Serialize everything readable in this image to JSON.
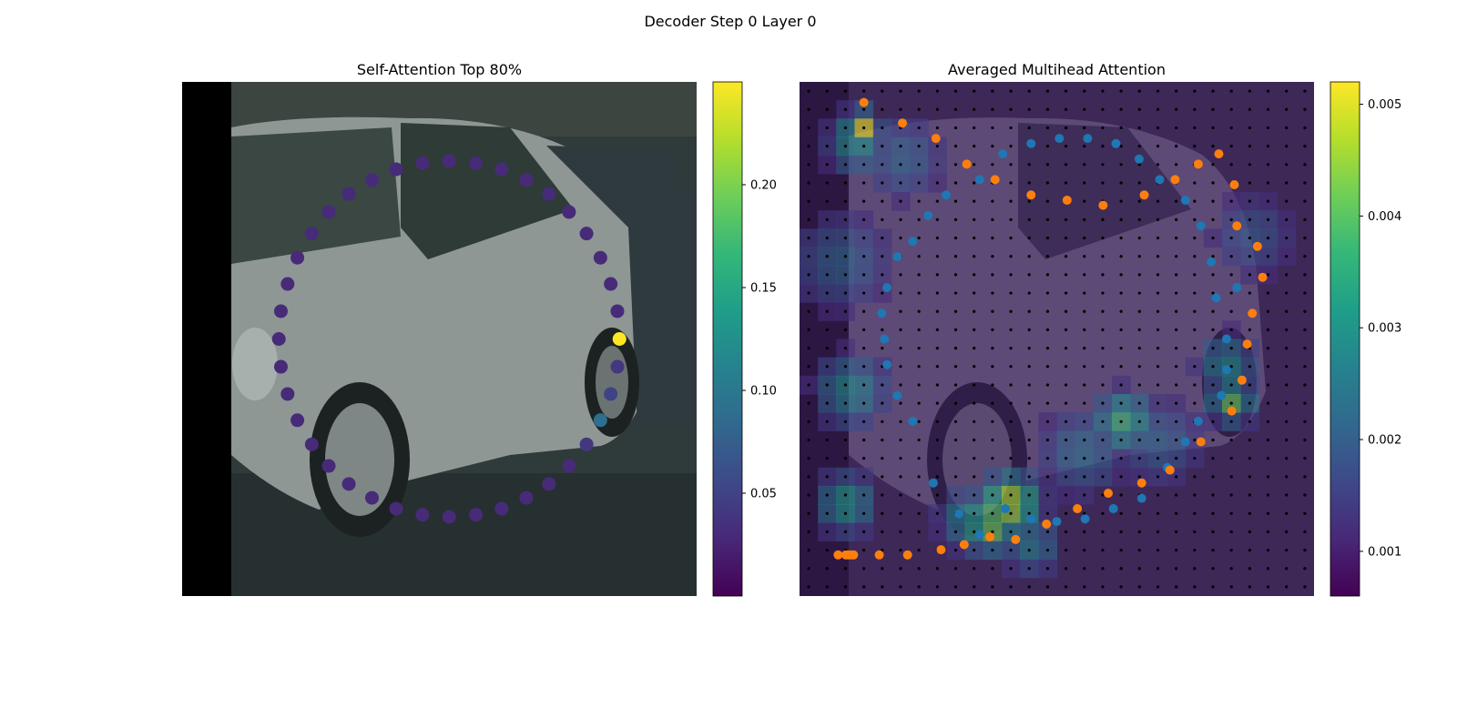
{
  "figure": {
    "suptitle": "Decoder Step 0 Layer 0"
  },
  "colors": {
    "viridis": [
      "#440154",
      "#482878",
      "#3e4989",
      "#31688e",
      "#26828e",
      "#1f9e89",
      "#35b779",
      "#6ece58",
      "#b5de2b",
      "#fde725"
    ],
    "query_points": "#1f77b4",
    "sampled_points": "#ff7f0e",
    "grid_dots": "#000000",
    "image_bg": "#2a3533",
    "image_overlay": "#3b1f59"
  },
  "chart_data": [
    {
      "type": "scatter",
      "title": "Self-Attention Top 80%",
      "xlim": [
        0,
        100
      ],
      "ylim": [
        0,
        100
      ],
      "colorbar": {
        "min": 0.0,
        "max": 0.25,
        "ticks": [
          0.05,
          0.1,
          0.15,
          0.2
        ],
        "tick_labels": [
          "0.05",
          "0.10",
          "0.15",
          "0.20"
        ]
      },
      "points": [
        {
          "x": 85.0,
          "y": 50.0,
          "v": 0.25
        },
        {
          "x": 84.6,
          "y": 55.4,
          "v": 0.04
        },
        {
          "x": 83.3,
          "y": 60.7,
          "v": 0.05
        },
        {
          "x": 81.3,
          "y": 65.8,
          "v": 0.09
        },
        {
          "x": 78.6,
          "y": 70.5,
          "v": 0.04
        },
        {
          "x": 75.2,
          "y": 74.7,
          "v": 0.03
        },
        {
          "x": 71.3,
          "y": 78.2,
          "v": 0.03
        },
        {
          "x": 66.9,
          "y": 80.9,
          "v": 0.03
        },
        {
          "x": 62.1,
          "y": 83.0,
          "v": 0.03
        },
        {
          "x": 57.1,
          "y": 84.2,
          "v": 0.03
        },
        {
          "x": 51.9,
          "y": 84.6,
          "v": 0.03
        },
        {
          "x": 46.7,
          "y": 84.2,
          "v": 0.03
        },
        {
          "x": 41.6,
          "y": 83.0,
          "v": 0.03
        },
        {
          "x": 36.9,
          "y": 80.9,
          "v": 0.03
        },
        {
          "x": 32.4,
          "y": 78.2,
          "v": 0.03
        },
        {
          "x": 28.5,
          "y": 74.7,
          "v": 0.03
        },
        {
          "x": 25.2,
          "y": 70.5,
          "v": 0.03
        },
        {
          "x": 22.4,
          "y": 65.8,
          "v": 0.03
        },
        {
          "x": 20.5,
          "y": 60.7,
          "v": 0.03
        },
        {
          "x": 19.2,
          "y": 55.4,
          "v": 0.03
        },
        {
          "x": 18.8,
          "y": 50.0,
          "v": 0.03
        },
        {
          "x": 19.2,
          "y": 44.6,
          "v": 0.03
        },
        {
          "x": 20.5,
          "y": 39.3,
          "v": 0.03
        },
        {
          "x": 22.4,
          "y": 34.2,
          "v": 0.03
        },
        {
          "x": 25.2,
          "y": 29.5,
          "v": 0.03
        },
        {
          "x": 28.5,
          "y": 25.3,
          "v": 0.03
        },
        {
          "x": 32.4,
          "y": 21.8,
          "v": 0.03
        },
        {
          "x": 36.9,
          "y": 19.1,
          "v": 0.03
        },
        {
          "x": 41.6,
          "y": 17.0,
          "v": 0.03
        },
        {
          "x": 46.7,
          "y": 15.8,
          "v": 0.03
        },
        {
          "x": 51.9,
          "y": 15.4,
          "v": 0.03
        },
        {
          "x": 57.1,
          "y": 15.8,
          "v": 0.03
        },
        {
          "x": 62.1,
          "y": 17.0,
          "v": 0.03
        },
        {
          "x": 66.9,
          "y": 19.1,
          "v": 0.03
        },
        {
          "x": 71.3,
          "y": 21.8,
          "v": 0.03
        },
        {
          "x": 75.2,
          "y": 25.3,
          "v": 0.03
        },
        {
          "x": 78.6,
          "y": 29.5,
          "v": 0.03
        },
        {
          "x": 81.3,
          "y": 34.2,
          "v": 0.03
        },
        {
          "x": 83.3,
          "y": 39.3,
          "v": 0.03
        },
        {
          "x": 84.6,
          "y": 44.6,
          "v": 0.03
        }
      ]
    },
    {
      "type": "heatmap",
      "title": "Averaged Multihead Attention",
      "xlim": [
        0,
        100
      ],
      "ylim": [
        0,
        100
      ],
      "grid_size": 28,
      "colorbar": {
        "min": 0.0006,
        "max": 0.0052,
        "ticks": [
          0.001,
          0.002,
          0.003,
          0.004,
          0.005
        ],
        "tick_labels": [
          "0.001",
          "0.002",
          "0.003",
          "0.004",
          "0.005"
        ]
      },
      "heat_spots": [
        {
          "x": 12,
          "y": 9,
          "v": 0.0052,
          "r": 2.5
        },
        {
          "x": 11,
          "y": 12,
          "v": 0.0032,
          "r": 4
        },
        {
          "x": 10,
          "y": 60,
          "v": 0.003,
          "r": 5
        },
        {
          "x": 9,
          "y": 82,
          "v": 0.0034,
          "r": 4
        },
        {
          "x": 41,
          "y": 82,
          "v": 0.005,
          "r": 4
        },
        {
          "x": 37,
          "y": 86,
          "v": 0.0045,
          "r": 4
        },
        {
          "x": 33,
          "y": 85,
          "v": 0.0032,
          "r": 4
        },
        {
          "x": 45,
          "y": 90,
          "v": 0.0028,
          "r": 4
        },
        {
          "x": 63,
          "y": 66,
          "v": 0.0038,
          "r": 4
        },
        {
          "x": 84,
          "y": 62,
          "v": 0.0042,
          "r": 3
        },
        {
          "x": 83,
          "y": 55,
          "v": 0.003,
          "r": 4
        },
        {
          "x": 8,
          "y": 35,
          "v": 0.0022,
          "r": 7
        },
        {
          "x": 88,
          "y": 30,
          "v": 0.002,
          "r": 6
        },
        {
          "x": 20,
          "y": 15,
          "v": 0.0022,
          "r": 6
        },
        {
          "x": 55,
          "y": 72,
          "v": 0.0024,
          "r": 6
        },
        {
          "x": 70,
          "y": 70,
          "v": 0.0022,
          "r": 6
        }
      ],
      "query_points": [
        {
          "x": 26.0,
          "y": 78.0
        },
        {
          "x": 31.0,
          "y": 84.0
        },
        {
          "x": 35.0,
          "y": 88.0
        },
        {
          "x": 40.0,
          "y": 83.0
        },
        {
          "x": 45.0,
          "y": 85.0
        },
        {
          "x": 50.0,
          "y": 85.5
        },
        {
          "x": 55.5,
          "y": 85.0
        },
        {
          "x": 61.0,
          "y": 83.0
        },
        {
          "x": 66.5,
          "y": 81.0
        },
        {
          "x": 71.5,
          "y": 75.0
        },
        {
          "x": 75.0,
          "y": 70.0
        },
        {
          "x": 77.5,
          "y": 66.0
        },
        {
          "x": 82.0,
          "y": 61.0
        },
        {
          "x": 83.0,
          "y": 50.0
        },
        {
          "x": 81.0,
          "y": 42.0
        },
        {
          "x": 83.0,
          "y": 56.0
        },
        {
          "x": 85.0,
          "y": 40.0
        },
        {
          "x": 80.0,
          "y": 35.0
        },
        {
          "x": 78.0,
          "y": 28.0
        },
        {
          "x": 75.0,
          "y": 23.0
        },
        {
          "x": 70.0,
          "y": 19.0
        },
        {
          "x": 66.0,
          "y": 15.0
        },
        {
          "x": 61.5,
          "y": 12.0
        },
        {
          "x": 56.0,
          "y": 11.0
        },
        {
          "x": 50.5,
          "y": 11.0
        },
        {
          "x": 45.0,
          "y": 12.0
        },
        {
          "x": 39.5,
          "y": 14.0
        },
        {
          "x": 35.0,
          "y": 19.0
        },
        {
          "x": 28.5,
          "y": 22.0
        },
        {
          "x": 25.0,
          "y": 26.0
        },
        {
          "x": 22.0,
          "y": 31.0
        },
        {
          "x": 19.0,
          "y": 34.0
        },
        {
          "x": 17.0,
          "y": 40.0
        },
        {
          "x": 16.0,
          "y": 45.0
        },
        {
          "x": 16.5,
          "y": 50.0
        },
        {
          "x": 17.0,
          "y": 55.0
        },
        {
          "x": 19.0,
          "y": 61.0
        },
        {
          "x": 22.0,
          "y": 66.0
        }
      ],
      "sampled_points": [
        {
          "x": 12.5,
          "y": 4.0
        },
        {
          "x": 20.0,
          "y": 8.0
        },
        {
          "x": 26.5,
          "y": 11.0
        },
        {
          "x": 32.5,
          "y": 16.0
        },
        {
          "x": 38.0,
          "y": 19.0
        },
        {
          "x": 45.0,
          "y": 22.0
        },
        {
          "x": 52.0,
          "y": 23.0
        },
        {
          "x": 59.0,
          "y": 24.0
        },
        {
          "x": 67.0,
          "y": 22.0
        },
        {
          "x": 73.0,
          "y": 19.0
        },
        {
          "x": 77.5,
          "y": 16.0
        },
        {
          "x": 81.5,
          "y": 14.0
        },
        {
          "x": 84.5,
          "y": 20.0
        },
        {
          "x": 85.0,
          "y": 28.0
        },
        {
          "x": 89.0,
          "y": 32.0
        },
        {
          "x": 90.0,
          "y": 38.0
        },
        {
          "x": 88.0,
          "y": 45.0
        },
        {
          "x": 87.0,
          "y": 51.0
        },
        {
          "x": 86.0,
          "y": 58.0
        },
        {
          "x": 84.0,
          "y": 64.0
        },
        {
          "x": 78.0,
          "y": 70.0
        },
        {
          "x": 72.0,
          "y": 75.5
        },
        {
          "x": 66.5,
          "y": 78.0
        },
        {
          "x": 60.0,
          "y": 80.0
        },
        {
          "x": 54.0,
          "y": 83.0
        },
        {
          "x": 48.0,
          "y": 86.0
        },
        {
          "x": 42.0,
          "y": 89.0
        },
        {
          "x": 37.0,
          "y": 88.5
        },
        {
          "x": 32.0,
          "y": 90.0
        },
        {
          "x": 27.5,
          "y": 91.0
        },
        {
          "x": 21.0,
          "y": 93.5
        },
        {
          "x": 15.5,
          "y": 95.0
        },
        {
          "x": 9.5,
          "y": 98.0
        },
        {
          "x": 7.5,
          "y": 100.0
        },
        {
          "x": 10.5,
          "y": 105.0
        },
        {
          "x": 10.0,
          "y": 108.0
        },
        {
          "x": 9.0,
          "y": 115.0
        }
      ]
    }
  ]
}
